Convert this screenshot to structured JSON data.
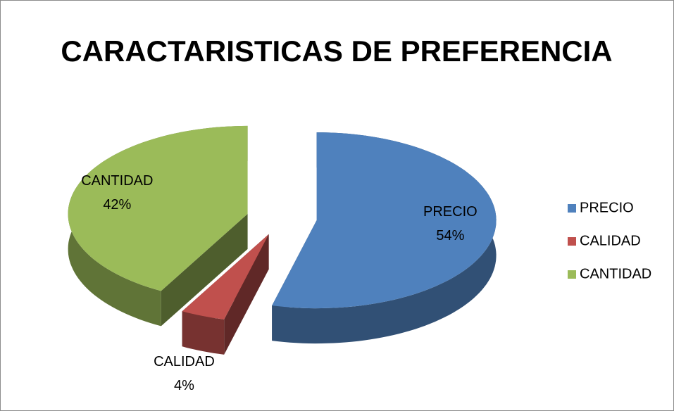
{
  "chart_data": {
    "type": "pie3d",
    "title": "CARACTARISTICAS DE PREFERENCIA",
    "categories": [
      "PRECIO",
      "CALIDAD",
      "CANTIDAD"
    ],
    "values": [
      54,
      4,
      42
    ],
    "value_labels": [
      "54%",
      "4%",
      "42%"
    ],
    "colors": [
      "#4f81bd",
      "#c0504d",
      "#9bbb59"
    ],
    "legend": "right"
  }
}
